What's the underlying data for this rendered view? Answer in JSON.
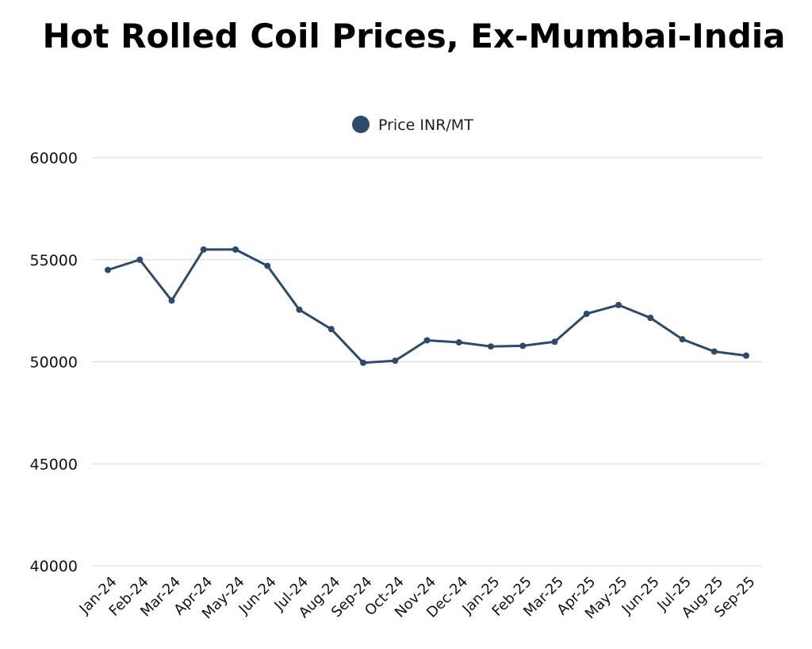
{
  "chart_data": {
    "type": "line",
    "title": "Hot Rolled Coil Prices, Ex-Mumbai-India",
    "xlabel": "",
    "ylabel": "",
    "ylim": [
      40000,
      60000
    ],
    "yticks": [
      "40000",
      "45000",
      "50000",
      "55000",
      "60000"
    ],
    "grid": true,
    "legend_position": "top-center",
    "categories": [
      "Jan-24",
      "Feb-24",
      "Mar-24",
      "Apr-24",
      "May-24",
      "Jun-24",
      "Jul-24",
      "Aug-24",
      "Sep-24",
      "Oct-24",
      "Nov-24",
      "Dec-24",
      "Jan-25",
      "Feb-25",
      "Mar-25",
      "Apr-25",
      "May-25",
      "Jun-25",
      "Jul-25",
      "Aug-25",
      "Sep-25"
    ],
    "series": [
      {
        "name": "Price INR/MT",
        "color": "#2d4a6b",
        "values": [
          54500,
          55000,
          53000,
          55500,
          55500,
          54700,
          52550,
          51600,
          49950,
          50050,
          51050,
          50950,
          50750,
          50780,
          50980,
          52350,
          52780,
          52150,
          51100,
          50500,
          50300
        ]
      }
    ]
  }
}
